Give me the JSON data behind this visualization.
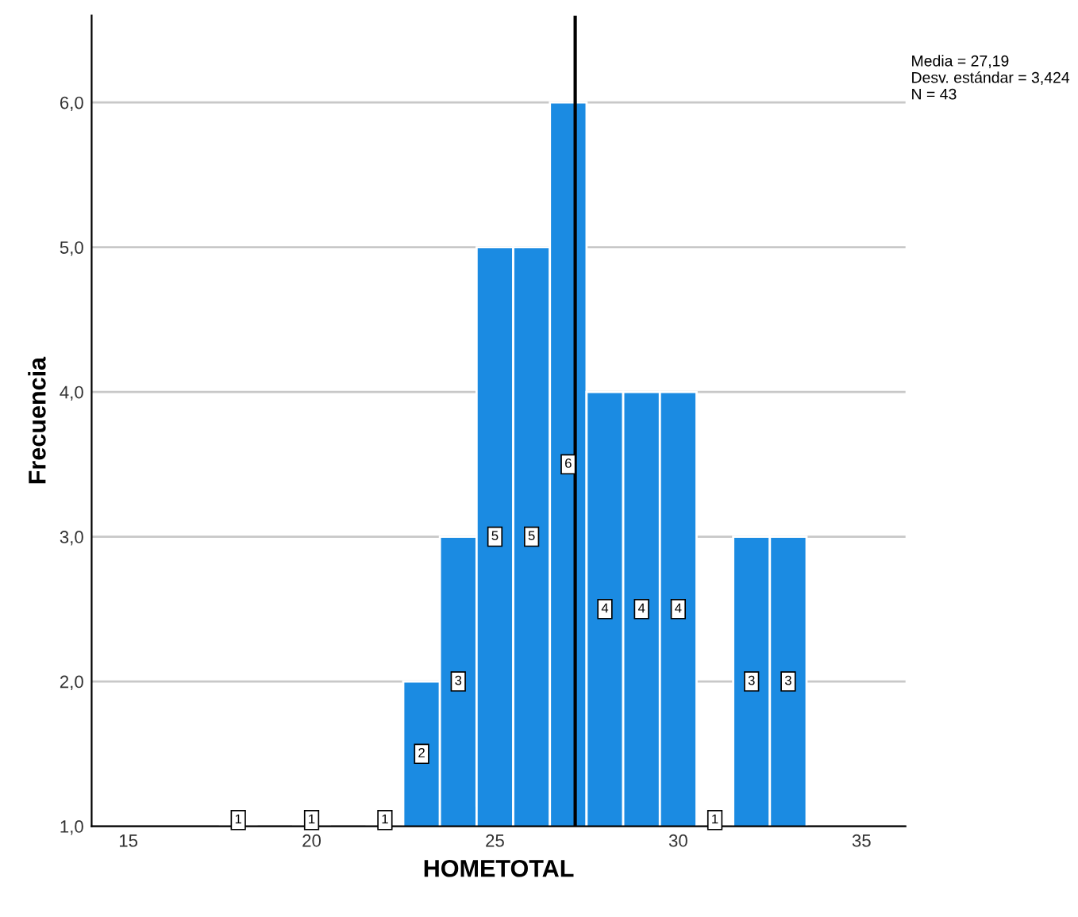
{
  "chart_data": {
    "type": "histogram",
    "xlabel": "HOMETOTAL",
    "ylabel": "Frecuencia",
    "bins": [
      17.5,
      18.5,
      19.5,
      20.5,
      21.5,
      22.5,
      23.5,
      24.5,
      25.5,
      26.5,
      27.5,
      28.5,
      29.5,
      30.5,
      31.5,
      32.5,
      33.5
    ],
    "values": [
      1,
      null,
      1,
      null,
      1,
      2,
      3,
      5,
      5,
      6,
      4,
      4,
      4,
      1,
      3,
      3
    ],
    "color": "#1b8be2",
    "data_labels": true,
    "xlim": [
      14,
      36.2
    ],
    "xticks": [
      15,
      20,
      25,
      30,
      35
    ],
    "ylim": [
      1,
      6.6
    ],
    "yticks": [
      {
        "value": 1,
        "label": "1,0"
      },
      {
        "value": 2,
        "label": "2,0"
      },
      {
        "value": 3,
        "label": "3,0"
      },
      {
        "value": 4,
        "label": "4,0"
      },
      {
        "value": 5,
        "label": "5,0"
      },
      {
        "value": 6,
        "label": "6,0"
      }
    ],
    "grid": "y",
    "ref_lines": [
      {
        "axis": "x",
        "value": 27.19,
        "color": "#000000"
      }
    ],
    "annotations": [
      "Media = 27,19\nDesv. estándar = 3,424\nN = 43"
    ]
  }
}
